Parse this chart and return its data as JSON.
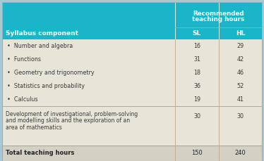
{
  "header_bg": "#1ab5c8",
  "header_text_color": "#ffffff",
  "row_bg": "#e8e4d8",
  "total_bg": "#d4d0c4",
  "outer_bg": "#a8c8d4",
  "divider_color": "#b8a890",
  "header_title_line1": "Recommended",
  "header_title_line2": "teaching hours",
  "col1_header": "Syllabus component",
  "col2_header": "SL",
  "col3_header": "HL",
  "bullet_rows": [
    {
      "label": "Number and algebra",
      "sl": "16",
      "hl": "29"
    },
    {
      "label": "Functions",
      "sl": "31",
      "hl": "42"
    },
    {
      "label": "Geometry and trigonometry",
      "sl": "18",
      "hl": "46"
    },
    {
      "label": "Statistics and probability",
      "sl": "36",
      "hl": "52"
    },
    {
      "label": "Calculus",
      "sl": "19",
      "hl": "41"
    }
  ],
  "dev_label_lines": [
    "Development of investigational, problem-solving",
    "and modelling skills and the exploration of an",
    "area of mathematics"
  ],
  "dev_sl": "30",
  "dev_hl": "30",
  "total_label": "Total teaching hours",
  "total_sl": "150",
  "total_hl": "240",
  "figsize": [
    3.74,
    2.29
  ],
  "dpi": 100
}
